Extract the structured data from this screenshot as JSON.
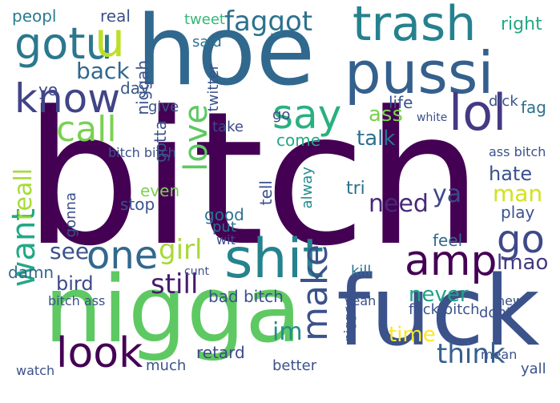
{
  "words": [
    {
      "text": "bitch",
      "color": "#440154",
      "vertical": false
    },
    {
      "text": "hoe",
      "color": "#31688e",
      "vertical": false
    },
    {
      "text": "nigga",
      "color": "#5ec962",
      "vertical": false
    },
    {
      "text": "fuck",
      "color": "#3b528b",
      "vertical": false
    },
    {
      "text": "pussi",
      "color": "#35608d",
      "vertical": false
    },
    {
      "text": "trash",
      "color": "#26818e",
      "vertical": false
    },
    {
      "text": "gotu",
      "color": "#2a788e",
      "vertical": false
    },
    {
      "text": "u",
      "color": "#bddf26",
      "vertical": false
    },
    {
      "text": "know",
      "color": "#414487",
      "vertical": false
    },
    {
      "text": "lol",
      "color": "#443983",
      "vertical": false
    },
    {
      "text": "shit",
      "color": "#25838e",
      "vertical": false
    },
    {
      "text": "say",
      "color": "#2ab07f",
      "vertical": false
    },
    {
      "text": "call",
      "color": "#7ad151",
      "vertical": false
    },
    {
      "text": "amp",
      "color": "#440154",
      "vertical": false
    },
    {
      "text": "go",
      "color": "#3e4989",
      "vertical": false
    },
    {
      "text": "one",
      "color": "#31688e",
      "vertical": false
    },
    {
      "text": "look",
      "color": "#440154",
      "vertical": false
    },
    {
      "text": "faggot",
      "color": "#2c728e",
      "vertical": false
    },
    {
      "text": "love",
      "color": "#5ec962",
      "vertical": true
    },
    {
      "text": "want",
      "color": "#22a884",
      "vertical": true
    },
    {
      "text": "make",
      "color": "#3b528b",
      "vertical": true
    },
    {
      "text": "girl",
      "color": "#a5db36",
      "vertical": false
    },
    {
      "text": "think",
      "color": "#35608d",
      "vertical": false
    },
    {
      "text": "need",
      "color": "#482878",
      "vertical": false
    },
    {
      "text": "still",
      "color": "#481a6c",
      "vertical": false
    },
    {
      "text": "back",
      "color": "#31688e",
      "vertical": false
    },
    {
      "text": "see",
      "color": "#3b528b",
      "vertical": false
    },
    {
      "text": "man",
      "color": "#d2e21b",
      "vertical": false
    },
    {
      "text": "time",
      "color": "#fde725",
      "vertical": false
    },
    {
      "text": "talk",
      "color": "#2c728e",
      "vertical": false
    },
    {
      "text": "ass",
      "color": "#7ad151",
      "vertical": false
    },
    {
      "text": "hate",
      "color": "#3b528b",
      "vertical": false
    },
    {
      "text": "never",
      "color": "#20a386",
      "vertical": false
    },
    {
      "text": "lmao",
      "color": "#443983",
      "vertical": false
    },
    {
      "text": "bird",
      "color": "#3e4989",
      "vertical": false
    },
    {
      "text": "im",
      "color": "#228c8d",
      "vertical": false
    },
    {
      "text": "reall",
      "color": "#a5db36",
      "vertical": true
    },
    {
      "text": "ya",
      "color": "#3e4989",
      "vertical": false
    },
    {
      "text": "peopl",
      "color": "#287c8e",
      "vertical": false
    },
    {
      "text": "real",
      "color": "#3b528b",
      "vertical": false
    },
    {
      "text": "right",
      "color": "#22a884",
      "vertical": false
    },
    {
      "text": "tweet",
      "color": "#35b779",
      "vertical": false
    },
    {
      "text": "said",
      "color": "#2c728e",
      "vertical": false
    },
    {
      "text": "day",
      "color": "#38598c",
      "vertical": false
    },
    {
      "text": "yo",
      "color": "#3e4989",
      "vertical": false
    },
    {
      "text": "niggah",
      "color": "#3b528b",
      "vertical": true
    },
    {
      "text": "come",
      "color": "#22a884",
      "vertical": false
    },
    {
      "text": "gotta",
      "color": "#3b528b",
      "vertical": true
    },
    {
      "text": "give",
      "color": "#3b528b",
      "vertical": false
    },
    {
      "text": "take",
      "color": "#3e4989",
      "vertical": false
    },
    {
      "text": "life",
      "color": "#3b528b",
      "vertical": false
    },
    {
      "text": "fag",
      "color": "#2c728e",
      "vertical": false
    },
    {
      "text": "go",
      "color": "#3e4989",
      "vertical": false
    },
    {
      "text": "tell",
      "color": "#3b528b",
      "vertical": true
    },
    {
      "text": "alway",
      "color": "#228c8d",
      "vertical": true
    },
    {
      "text": "tri",
      "color": "#2c728e",
      "vertical": false
    },
    {
      "text": "even",
      "color": "#7ad151",
      "vertical": false
    },
    {
      "text": "stop",
      "color": "#3b528b",
      "vertical": false
    },
    {
      "text": "play",
      "color": "#3b528b",
      "vertical": false
    },
    {
      "text": "put",
      "color": "#2c728e",
      "vertical": false
    },
    {
      "text": "wit",
      "color": "#3e4989",
      "vertical": false
    },
    {
      "text": "good",
      "color": "#2c728e",
      "vertical": false
    },
    {
      "text": "feel",
      "color": "#31688e",
      "vertical": false
    },
    {
      "text": "kill",
      "color": "#2c728e",
      "vertical": false
    },
    {
      "text": "damn",
      "color": "#31688e",
      "vertical": false
    },
    {
      "text": "bad bitch",
      "color": "#3b528b",
      "vertical": false
    },
    {
      "text": "retard",
      "color": "#3e4989",
      "vertical": false
    },
    {
      "text": "dont",
      "color": "#3b528b",
      "vertical": false
    },
    {
      "text": "new",
      "color": "#3b528b",
      "vertical": false
    },
    {
      "text": "fuck bitch",
      "color": "#3b528b",
      "vertical": false
    },
    {
      "text": "bitch ass",
      "color": "#3b528b",
      "vertical": false
    },
    {
      "text": "yall",
      "color": "#3b528b",
      "vertical": false
    },
    {
      "text": "much",
      "color": "#3b528b",
      "vertical": false
    },
    {
      "text": "better",
      "color": "#3b528b",
      "vertical": false
    },
    {
      "text": "ass bitch",
      "color": "#3b528b",
      "vertical": false
    },
    {
      "text": "bitch bitch",
      "color": "#3b528b",
      "vertical": false
    },
    {
      "text": "watch",
      "color": "#3b528b",
      "vertical": false
    },
    {
      "text": "yeah",
      "color": "#3b528b",
      "vertical": false
    },
    {
      "text": "nigger",
      "color": "#3b528b",
      "vertical": true
    },
    {
      "text": "gonna",
      "color": "#3b528b",
      "vertical": true
    },
    {
      "text": "twitter",
      "color": "#3b528b",
      "vertical": true
    },
    {
      "text": "cunt",
      "color": "#3b528b",
      "vertical": false
    },
    {
      "text": "mean",
      "color": "#3b528b",
      "vertical": false
    },
    {
      "text": "white",
      "color": "#3b528b",
      "vertical": false
    },
    {
      "text": "dick",
      "color": "#3b528b",
      "vertical": false
    }
  ]
}
